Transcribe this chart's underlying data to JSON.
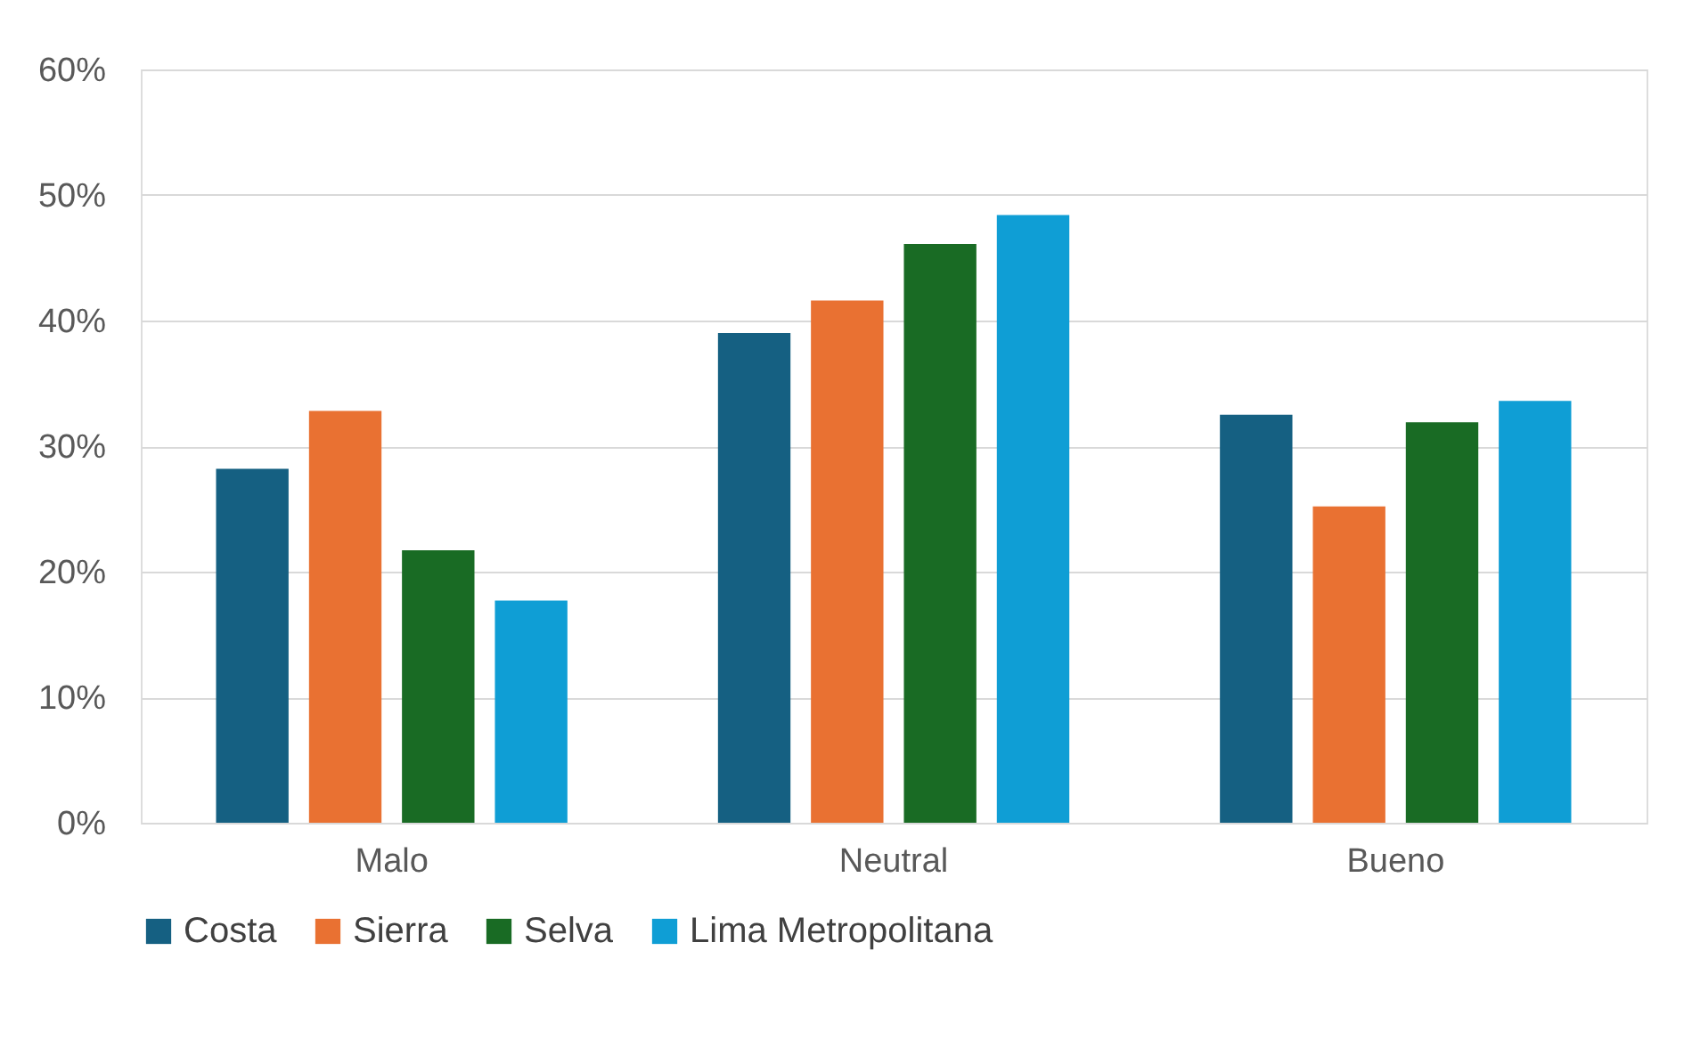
{
  "chart_data": {
    "type": "bar",
    "categories": [
      "Malo",
      "Neutral",
      "Bueno"
    ],
    "series": [
      {
        "name": "Costa",
        "color": "#156082",
        "values": [
          28.2,
          39.0,
          32.5
        ]
      },
      {
        "name": "Sierra",
        "color": "#e97132",
        "values": [
          32.8,
          41.6,
          25.2
        ]
      },
      {
        "name": "Selva",
        "color": "#196b24",
        "values": [
          21.7,
          46.1,
          31.9
        ]
      },
      {
        "name": "Lima Metropolitana",
        "color": "#0f9ed5",
        "values": [
          17.7,
          48.4,
          33.6
        ]
      }
    ],
    "ylim": [
      0,
      60
    ],
    "yticks": [
      {
        "value": 0,
        "label": "0%"
      },
      {
        "value": 10,
        "label": "10%"
      },
      {
        "value": 20,
        "label": "20%"
      },
      {
        "value": 30,
        "label": "30%"
      },
      {
        "value": 40,
        "label": "40%"
      },
      {
        "value": 50,
        "label": "50%"
      },
      {
        "value": 60,
        "label": "60%"
      }
    ],
    "grid": "y",
    "legend": "bottom"
  }
}
